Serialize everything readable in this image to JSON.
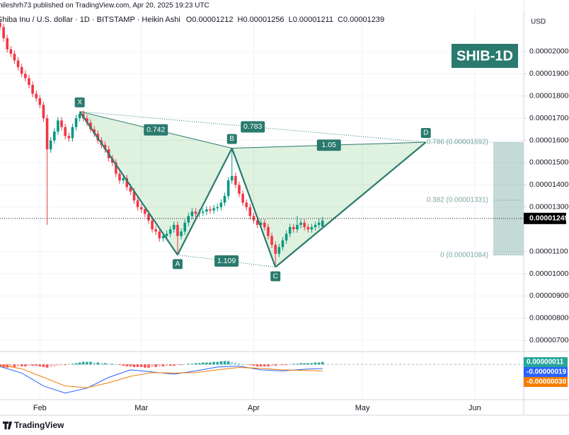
{
  "attribution": "hileshrh73 published on TradingView.com, Apr 20, 2025 19:23 UTC",
  "brand": "TradingView",
  "chart_data": [
    {
      "type": "candlestick",
      "title": "Shiba Inu / U.S. dollar · 1D · BITSTAMP · Heikin Ashi",
      "ohlc_names": [
        "O",
        "H",
        "L",
        "C"
      ],
      "ohlc": [
        {
          "value": 1.212e-05,
          "label": "0.00001212"
        },
        {
          "value": 1.256e-05,
          "label": "0.00001256"
        },
        {
          "value": 1.211e-05,
          "label": "0.00001211"
        },
        {
          "value": 1.239e-05,
          "label": "0.00001239"
        }
      ],
      "symbol_label": "SHIB-1D",
      "currency": "USD",
      "up_color": "#089981",
      "down_color": "#f23645",
      "xlim": [
        0,
        144.5
      ],
      "xticks": [
        {
          "value": 11,
          "label": "Feb"
        },
        {
          "value": 39,
          "label": "Mar"
        },
        {
          "value": 70,
          "label": "Apr"
        },
        {
          "value": 100,
          "label": "May"
        },
        {
          "value": 131,
          "label": "Jun"
        }
      ],
      "ylim": [
        6.5e-06,
        2.232e-05
      ],
      "yticks": [
        {
          "value": 7e-06,
          "label": "0.00000700"
        },
        {
          "value": 8e-06,
          "label": "0.00000800"
        },
        {
          "value": 9e-06,
          "label": "0.00000900"
        },
        {
          "value": 1e-05,
          "label": "0.00001000"
        },
        {
          "value": 1.1e-05,
          "label": "0.00001100"
        },
        {
          "value": 1.3e-05,
          "label": "0.00001300"
        },
        {
          "value": 1.4e-05,
          "label": "0.00001400"
        },
        {
          "value": 1.5e-05,
          "label": "0.00001500"
        },
        {
          "value": 1.6e-05,
          "label": "0.00001600"
        },
        {
          "value": 1.7e-05,
          "label": "0.00001700"
        },
        {
          "value": 1.8e-05,
          "label": "0.00001800"
        },
        {
          "value": 1.9e-05,
          "label": "0.00001900"
        },
        {
          "value": 2e-05,
          "label": "0.00002000"
        }
      ],
      "grid": true,
      "last_price": {
        "value": 1.249e-05,
        "label": "0.00001249"
      },
      "candles": [
        [
          2.13e-05,
          2.145e-05,
          2.095e-05,
          2.11e-05
        ],
        [
          2.11e-05,
          2.125e-05,
          2.045e-05,
          2.06e-05
        ],
        [
          2.06e-05,
          2.075e-05,
          1.995e-05,
          2.01e-05
        ],
        [
          2.01e-05,
          2.025e-05,
          1.975e-05,
          1.99e-05
        ],
        [
          1.99e-05,
          2.005e-05,
          1.945e-05,
          1.96e-05
        ],
        [
          1.96e-05,
          1.975e-05,
          1.915e-05,
          1.93e-05
        ],
        [
          1.93e-05,
          1.945e-05,
          1.885e-05,
          1.9e-05
        ],
        [
          1.9e-05,
          1.915e-05,
          1.865e-05,
          1.88e-05
        ],
        [
          1.88e-05,
          1.895e-05,
          1.835e-05,
          1.85e-05
        ],
        [
          1.85e-05,
          1.865e-05,
          1.795e-05,
          1.81e-05
        ],
        [
          1.81e-05,
          1.825e-05,
          1.775e-05,
          1.79e-05
        ],
        [
          1.79e-05,
          1.805e-05,
          1.745e-05,
          1.76e-05
        ],
        [
          1.76e-05,
          1.775e-05,
          1.685e-05,
          1.7e-05
        ],
        [
          1.7e-05,
          1.715e-05,
          1.22e-05,
          1.56e-05
        ],
        [
          1.56e-05,
          1.615e-05,
          1.545e-05,
          1.6e-05
        ],
        [
          1.6e-05,
          1.655e-05,
          1.585e-05,
          1.64e-05
        ],
        [
          1.64e-05,
          1.705e-05,
          1.625e-05,
          1.69e-05
        ],
        [
          1.69e-05,
          1.705e-05,
          1.645e-05,
          1.66e-05
        ],
        [
          1.66e-05,
          1.675e-05,
          1.605e-05,
          1.62e-05
        ],
        [
          1.62e-05,
          1.635e-05,
          1.595e-05,
          1.61e-05
        ],
        [
          1.61e-05,
          1.675e-05,
          1.595e-05,
          1.66e-05
        ],
        [
          1.66e-05,
          1.715e-05,
          1.645e-05,
          1.7e-05
        ],
        [
          1.7e-05,
          1.73e-05,
          1.685e-05,
          1.72e-05
        ],
        [
          1.72e-05,
          1.735e-05,
          1.685e-05,
          1.7e-05
        ],
        [
          1.7e-05,
          1.715e-05,
          1.665e-05,
          1.68e-05
        ],
        [
          1.68e-05,
          1.695e-05,
          1.635e-05,
          1.65e-05
        ],
        [
          1.65e-05,
          1.665e-05,
          1.615e-05,
          1.63e-05
        ],
        [
          1.63e-05,
          1.645e-05,
          1.585e-05,
          1.6e-05
        ],
        [
          1.6e-05,
          1.615e-05,
          1.565e-05,
          1.58e-05
        ],
        [
          1.58e-05,
          1.595e-05,
          1.545e-05,
          1.56e-05
        ],
        [
          1.56e-05,
          1.575e-05,
          1.505e-05,
          1.52e-05
        ],
        [
          1.52e-05,
          1.535e-05,
          1.485e-05,
          1.5e-05
        ],
        [
          1.5e-05,
          1.515e-05,
          1.435e-05,
          1.45e-05
        ],
        [
          1.45e-05,
          1.465e-05,
          1.405e-05,
          1.42e-05
        ],
        [
          1.42e-05,
          1.445e-05,
          1.405e-05,
          1.43e-05
        ],
        [
          1.43e-05,
          1.445e-05,
          1.375e-05,
          1.39e-05
        ],
        [
          1.39e-05,
          1.405e-05,
          1.355e-05,
          1.37e-05
        ],
        [
          1.37e-05,
          1.385e-05,
          1.315e-05,
          1.33e-05
        ],
        [
          1.33e-05,
          1.345e-05,
          1.285e-05,
          1.3e-05
        ],
        [
          1.3e-05,
          1.315e-05,
          1.275e-05,
          1.29e-05
        ],
        [
          1.29e-05,
          1.305e-05,
          1.255e-05,
          1.27e-05
        ],
        [
          1.27e-05,
          1.285e-05,
          1.225e-05,
          1.24e-05
        ],
        [
          1.24e-05,
          1.255e-05,
          1.185e-05,
          1.2e-05
        ],
        [
          1.2e-05,
          1.215e-05,
          1.175e-05,
          1.19e-05
        ],
        [
          1.19e-05,
          1.205e-05,
          1.145e-05,
          1.16e-05
        ],
        [
          1.16e-05,
          1.185e-05,
          1.145e-05,
          1.17e-05
        ],
        [
          1.17e-05,
          1.195e-05,
          1.155e-05,
          1.18e-05
        ],
        [
          1.18e-05,
          1.215e-05,
          1.165e-05,
          1.2e-05
        ],
        [
          1.2e-05,
          1.235e-05,
          1.185e-05,
          1.22e-05
        ],
        [
          1.22e-05,
          1.235e-05,
          1.085e-05,
          1.17e-05
        ],
        [
          1.17e-05,
          1.205e-05,
          1.155e-05,
          1.19e-05
        ],
        [
          1.19e-05,
          1.245e-05,
          1.175e-05,
          1.23e-05
        ],
        [
          1.23e-05,
          1.275e-05,
          1.215e-05,
          1.26e-05
        ],
        [
          1.26e-05,
          1.295e-05,
          1.245e-05,
          1.28e-05
        ],
        [
          1.28e-05,
          1.295e-05,
          1.255e-05,
          1.27e-05
        ],
        [
          1.27e-05,
          1.29e-05,
          1.255e-05,
          1.275e-05
        ],
        [
          1.275e-05,
          1.295e-05,
          1.26e-05,
          1.28e-05
        ],
        [
          1.28e-05,
          1.305e-05,
          1.265e-05,
          1.29e-05
        ],
        [
          1.29e-05,
          1.305e-05,
          1.27e-05,
          1.285e-05
        ],
        [
          1.285e-05,
          1.31e-05,
          1.27e-05,
          1.295e-05
        ],
        [
          1.295e-05,
          1.315e-05,
          1.28e-05,
          1.3e-05
        ],
        [
          1.3e-05,
          1.335e-05,
          1.285e-05,
          1.32e-05
        ],
        [
          1.32e-05,
          1.365e-05,
          1.305e-05,
          1.35e-05
        ],
        [
          1.35e-05,
          1.435e-05,
          1.335e-05,
          1.42e-05
        ],
        [
          1.42e-05,
          1.565e-05,
          1.405e-05,
          1.44e-05
        ],
        [
          1.44e-05,
          1.455e-05,
          1.385e-05,
          1.4e-05
        ],
        [
          1.4e-05,
          1.415e-05,
          1.345e-05,
          1.36e-05
        ],
        [
          1.36e-05,
          1.375e-05,
          1.305e-05,
          1.32e-05
        ],
        [
          1.32e-05,
          1.335e-05,
          1.285e-05,
          1.3e-05
        ],
        [
          1.3e-05,
          1.315e-05,
          1.245e-05,
          1.26e-05
        ],
        [
          1.26e-05,
          1.275e-05,
          1.225e-05,
          1.24e-05
        ],
        [
          1.24e-05,
          1.255e-05,
          1.205e-05,
          1.22e-05
        ],
        [
          1.22e-05,
          1.245e-05,
          1.205e-05,
          1.23e-05
        ],
        [
          1.23e-05,
          1.245e-05,
          1.195e-05,
          1.21e-05
        ],
        [
          1.21e-05,
          1.225e-05,
          1.155e-05,
          1.17e-05
        ],
        [
          1.17e-05,
          1.185e-05,
          1.115e-05,
          1.13e-05
        ],
        [
          1.13e-05,
          1.145e-05,
          1.035e-05,
          1.09e-05
        ],
        [
          1.09e-05,
          1.135e-05,
          1.075e-05,
          1.12e-05
        ],
        [
          1.12e-05,
          1.165e-05,
          1.105e-05,
          1.15e-05
        ],
        [
          1.15e-05,
          1.195e-05,
          1.135e-05,
          1.18e-05
        ],
        [
          1.18e-05,
          1.225e-05,
          1.165e-05,
          1.21e-05
        ],
        [
          1.21e-05,
          1.225e-05,
          1.185e-05,
          1.2e-05
        ],
        [
          1.2e-05,
          1.26e-05,
          1.185e-05,
          1.22e-05
        ],
        [
          1.22e-05,
          1.245e-05,
          1.205e-05,
          1.23e-05
        ],
        [
          1.23e-05,
          1.245e-05,
          1.195e-05,
          1.21e-05
        ],
        [
          1.21e-05,
          1.225e-05,
          1.185e-05,
          1.2e-05
        ],
        [
          1.2e-05,
          1.225e-05,
          1.185e-05,
          1.21e-05
        ],
        [
          1.21e-05,
          1.235e-05,
          1.195e-05,
          1.22e-05
        ],
        [
          1.22e-05,
          1.25e-05,
          1.205e-05,
          1.23e-05
        ],
        [
          1.212e-05,
          1.256e-05,
          1.211e-05,
          1.239e-05
        ]
      ],
      "pattern": {
        "color": "#2a7a6e",
        "points": [
          {
            "label": "X",
            "x": 22,
            "y": 1.73e-05
          },
          {
            "label": "A",
            "x": 49,
            "y": 1.085e-05
          },
          {
            "label": "B",
            "x": 64,
            "y": 1.565e-05
          },
          {
            "label": "C",
            "x": 76,
            "y": 1.03e-05
          },
          {
            "label": "D",
            "x": 117.5,
            "y": 1.592e-05
          }
        ],
        "ratios": [
          0.742,
          0.783,
          1.05,
          1.109
        ]
      },
      "fib_levels": [
        {
          "value": 1.592e-05,
          "label": "0.786 (0.00001592)"
        },
        {
          "value": 1.331e-05,
          "label": "0.382 (0.00001331)"
        },
        {
          "value": 1.084e-05,
          "label": "0 (0.00001084)"
        }
      ]
    },
    {
      "type": "macd",
      "ylim": [
        -1.57e-06,
        6e-07
      ],
      "histogram": {
        "up_color": "#26a69a",
        "down_color": "#ff5252",
        "last_label": "0.00000011",
        "values": [
          -1.2e-07,
          -1.5e-07,
          -1.5e-07,
          -1.2e-07,
          -1.2e-07,
          -9e-08,
          -9e-08,
          -9e-08,
          -6e-08,
          -6e-08,
          -6e-08,
          -9e-08,
          -1.2e-07,
          -1.5e-07,
          -1.2e-07,
          -9e-08,
          -6e-08,
          -3e-08,
          -3e-08,
          0,
          3e-08,
          6e-08,
          9e-08,
          1.2e-07,
          1.2e-07,
          1.2e-07,
          9e-08,
          9e-08,
          6e-08,
          6e-08,
          3e-08,
          3e-08,
          0,
          -3e-08,
          -6e-08,
          -9e-08,
          -9e-08,
          -1.2e-07,
          -1.2e-07,
          -1.2e-07,
          -1.5e-07,
          -1.5e-07,
          -1.2e-07,
          -1.2e-07,
          -9e-08,
          -9e-08,
          -6e-08,
          -6e-08,
          -6e-08,
          -3e-08,
          -3e-08,
          0,
          3e-08,
          3e-08,
          6e-08,
          6e-08,
          9e-08,
          9e-08,
          9e-08,
          1.2e-07,
          1.2e-07,
          1.5e-07,
          1.5e-07,
          1.5e-07,
          1.2e-07,
          9e-08,
          6e-08,
          3e-08,
          0,
          -3e-08,
          -6e-08,
          -9e-08,
          -9e-08,
          -9e-08,
          -9e-08,
          -6e-08,
          -6e-08,
          -3e-08,
          -3e-08,
          -3e-08,
          0,
          3e-08,
          3e-08,
          6e-08,
          6e-08,
          6e-08,
          6e-08,
          9e-08,
          9e-08,
          1.1e-07
        ]
      },
      "series": [
        {
          "color": "#2962ff",
          "last_label": "-0.00000019",
          "x": [
            0,
            6,
            12,
            18,
            24,
            30,
            36,
            42,
            48,
            54,
            60,
            66,
            72,
            78,
            84,
            89
          ],
          "values": [
            -1e-07,
            -4e-07,
            -1e-06,
            -1.33e-06,
            -1.1e-06,
            -6e-07,
            -2.5e-07,
            -3.5e-07,
            -4.5e-07,
            -3e-07,
            -1.2e-07,
            -8e-08,
            -2.5e-07,
            -3e-07,
            -2.2e-07,
            -1.9e-07
          ]
        },
        {
          "color": "#f57c00",
          "last_label": "-0.00000030",
          "x": [
            0,
            6,
            12,
            18,
            24,
            30,
            36,
            42,
            48,
            54,
            60,
            66,
            72,
            78,
            84,
            89
          ],
          "values": [
            -3e-08,
            -2e-07,
            -6e-07,
            -1e-06,
            -1.08e-06,
            -8.5e-07,
            -5.5e-07,
            -3.8e-07,
            -4e-07,
            -3.8e-07,
            -2.5e-07,
            -1.4e-07,
            -1.8e-07,
            -2.5e-07,
            -2.8e-07,
            -3e-07
          ]
        }
      ]
    }
  ]
}
